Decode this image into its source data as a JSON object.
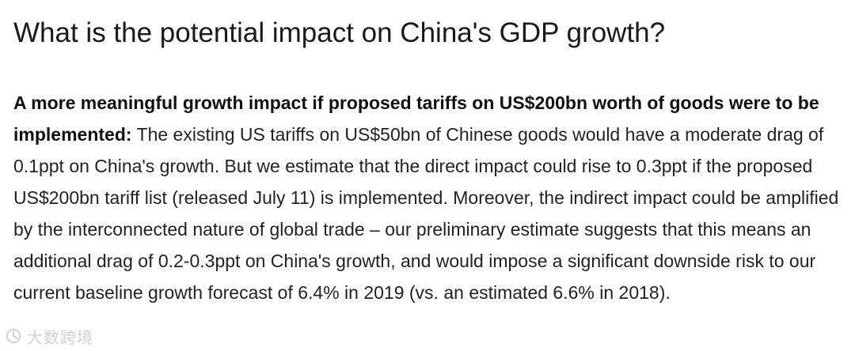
{
  "heading": "What is the potential impact on China's GDP growth?",
  "paragraph": {
    "lead": "A more meaningful growth impact if proposed tariffs on US$200bn worth of goods were to be implemented:",
    "body": "The existing US tariffs on US$50bn of Chinese goods would have a moderate drag of 0.1ppt on China's growth. But we estimate that the direct impact could rise to 0.3ppt if the proposed US$200bn tariff list (released July 11) is implemented. Moreover, the indirect impact could be amplified by the interconnected nature of global trade – our preliminary estimate suggests that this means an additional drag of 0.2-0.3ppt on China's growth, and would impose a significant downside risk to our current baseline growth forecast of 6.4% in 2019 (vs. an estimated 6.6% in 2018)."
  },
  "watermark": {
    "text": "大数跨境",
    "color": "#9a9a9a"
  }
}
